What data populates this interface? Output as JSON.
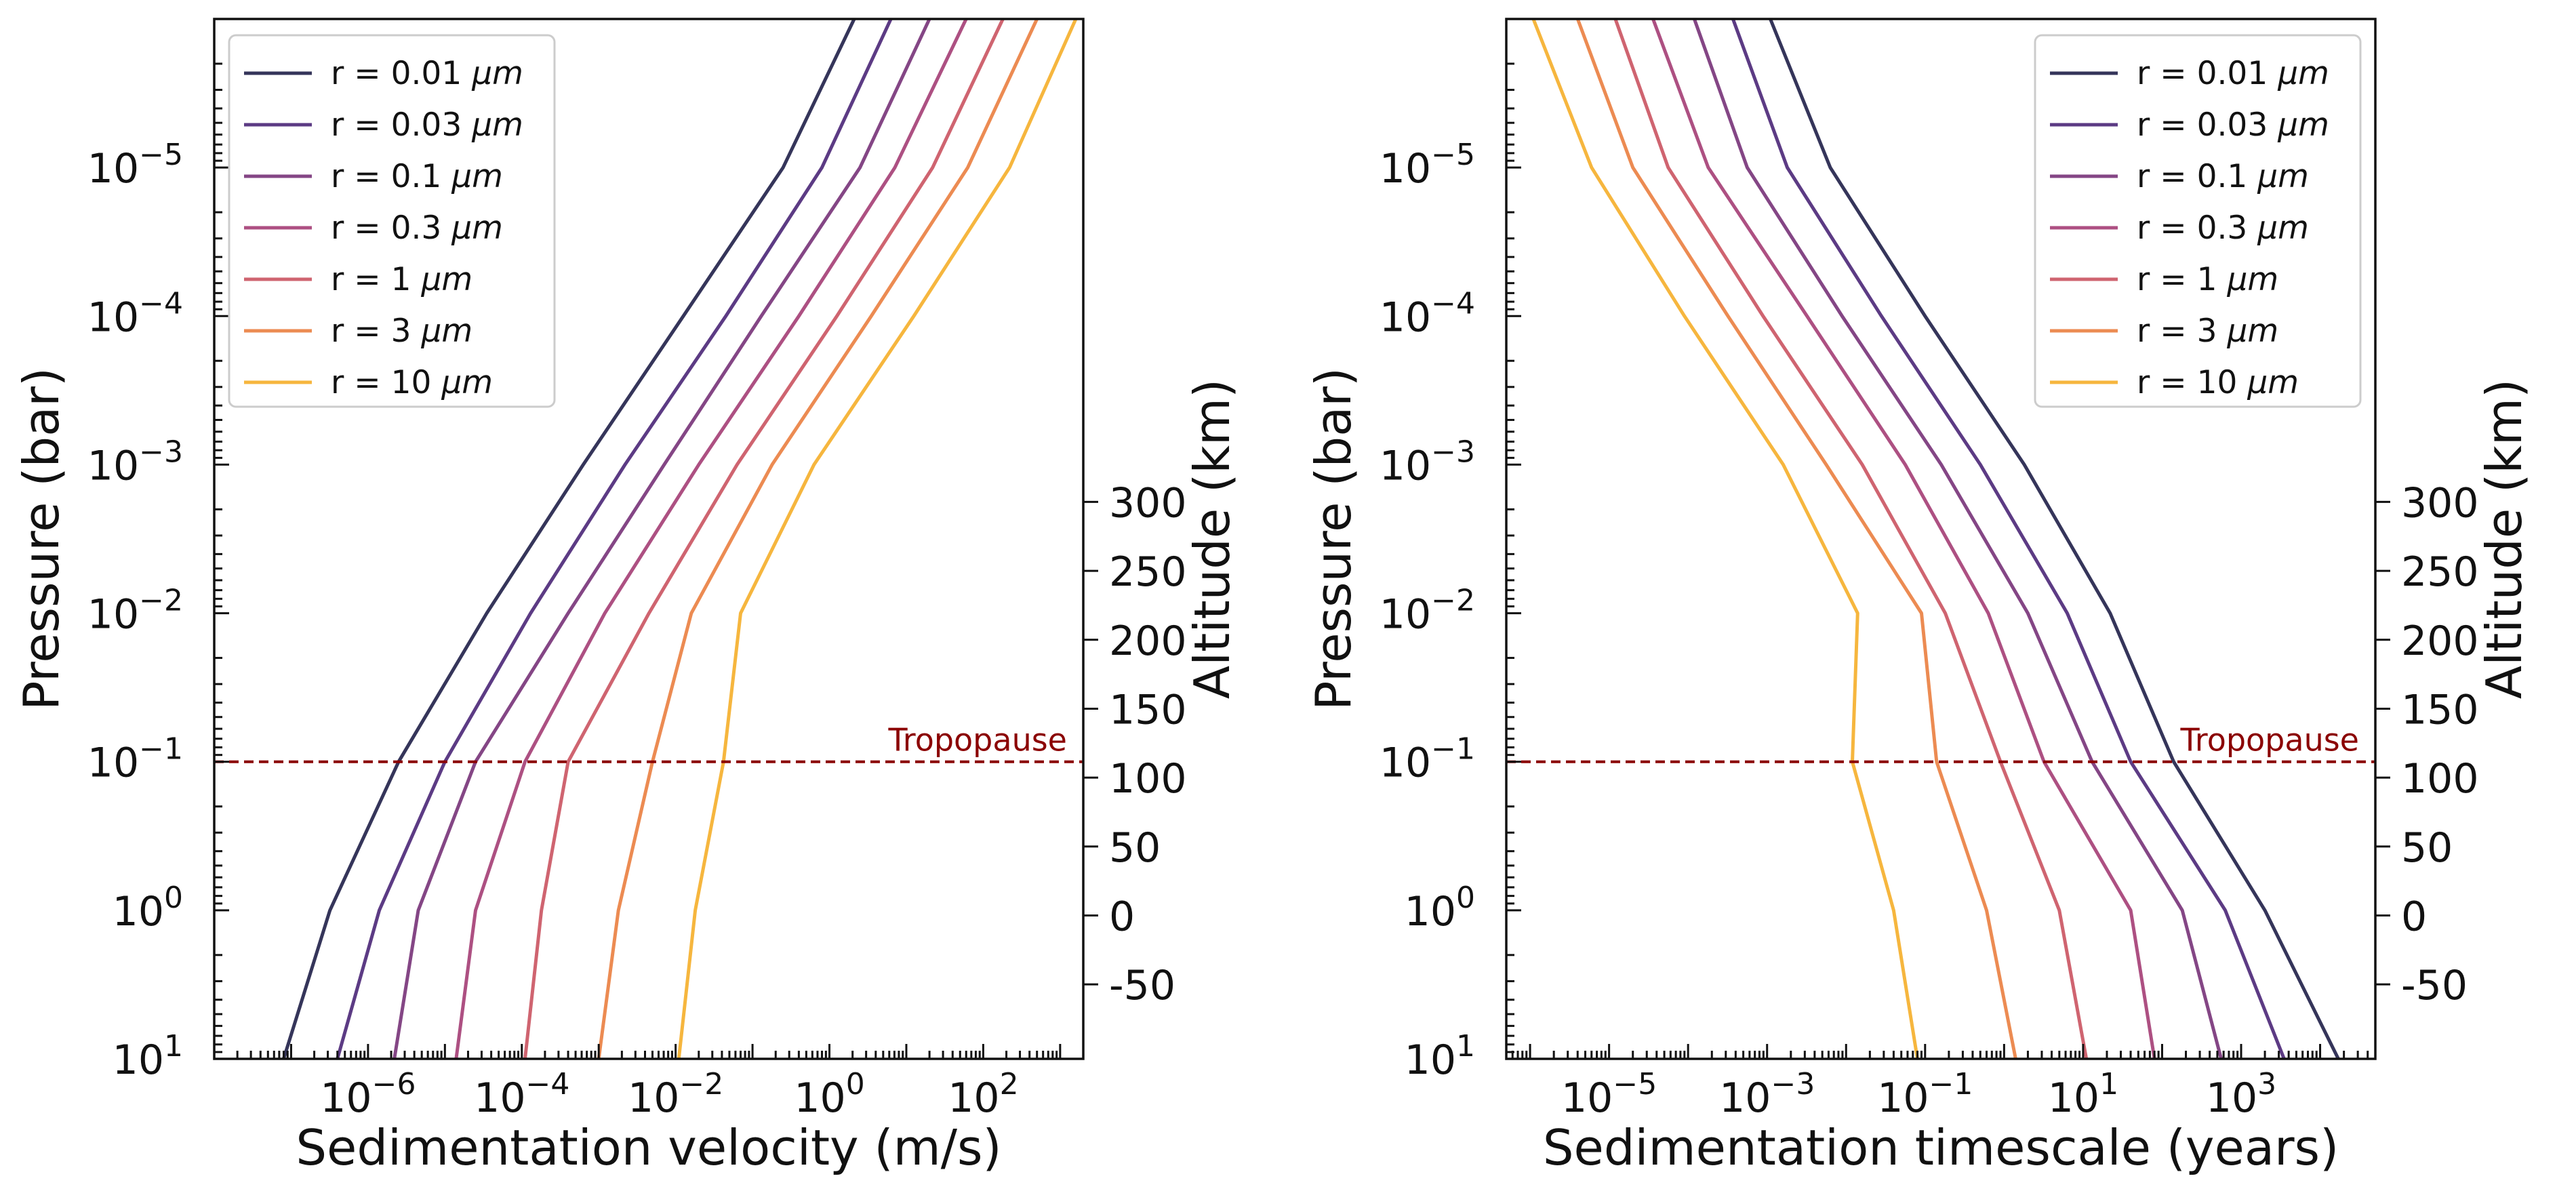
{
  "chart_data": [
    {
      "type": "line",
      "id": "velocity",
      "title": "",
      "xlabel": "Sedimentation velocity (m/s)",
      "ylabel": "Pressure (bar)",
      "y2label": "Altitude (km)",
      "xscale": "log",
      "yscale": "log",
      "xlim": [
        1e-08,
        2000
      ],
      "ylim": [
        10,
        1e-06
      ],
      "xtick_exps": [
        -6,
        -4,
        -2,
        0,
        2
      ],
      "ytick_exps": [
        -5,
        -4,
        -3,
        -2,
        -1,
        0,
        1
      ],
      "y2ticks": [
        300,
        250,
        200,
        150,
        100,
        50,
        0,
        -50
      ],
      "legend_position": "upper left",
      "tropopause": {
        "label": "Tropopause",
        "pressure": 0.1,
        "label_anchor": "right",
        "color": "#8b0000"
      },
      "series": [
        {
          "name": "r = 0.01 μm",
          "label_pre": "r = 0.01 ",
          "label_unit": "μm",
          "color": "#35355a",
          "points": [
            [
              8e-08,
              10
            ],
            [
              3.2e-07,
              1
            ],
            [
              2.5e-06,
              0.1
            ],
            [
              3.5e-05,
              0.01
            ],
            [
              0.00063,
              0.001
            ],
            [
              0.0126,
              0.0001
            ],
            [
              0.25,
              1e-05
            ],
            [
              2.1,
              1e-06
            ]
          ]
        },
        {
          "name": "r = 0.03 μm",
          "label_pre": "r = 0.03 ",
          "label_unit": "μm",
          "color": "#5c3b84",
          "points": [
            [
              4e-07,
              10
            ],
            [
              1.4e-06,
              1
            ],
            [
              1e-05,
              0.1
            ],
            [
              0.00013,
              0.01
            ],
            [
              0.0022,
              0.001
            ],
            [
              0.045,
              0.0001
            ],
            [
              0.8,
              1e-05
            ],
            [
              6.3,
              1e-06
            ]
          ]
        },
        {
          "name": "r = 0.1 μm",
          "label_pre": "r = 0.1 ",
          "label_unit": "μm",
          "color": "#844685",
          "points": [
            [
              2.2e-06,
              10
            ],
            [
              4.5e-06,
              1
            ],
            [
              2.5e-05,
              0.1
            ],
            [
              0.0004,
              0.01
            ],
            [
              0.0071,
              0.001
            ],
            [
              0.13,
              0.0001
            ],
            [
              2.5,
              1e-05
            ],
            [
              20,
              1e-06
            ]
          ]
        },
        {
          "name": "r = 0.3 μm",
          "label_pre": "r = 0.3 ",
          "label_unit": "μm",
          "color": "#ad5082",
          "points": [
            [
              1.4e-05,
              10
            ],
            [
              2.5e-05,
              1
            ],
            [
              0.00011,
              0.1
            ],
            [
              0.0012,
              0.01
            ],
            [
              0.02,
              0.001
            ],
            [
              0.4,
              0.0001
            ],
            [
              7.1,
              1e-05
            ],
            [
              60,
              1e-06
            ]
          ]
        },
        {
          "name": "r = 1 μm",
          "label_pre": "r = 1 ",
          "label_unit": "μm",
          "color": "#cf6470",
          "points": [
            [
              0.00011,
              10
            ],
            [
              0.00018,
              1
            ],
            [
              0.0004,
              0.1
            ],
            [
              0.0045,
              0.01
            ],
            [
              0.063,
              0.001
            ],
            [
              1.25,
              0.0001
            ],
            [
              22,
              1e-05
            ],
            [
              180,
              1e-06
            ]
          ]
        },
        {
          "name": "r = 3 μm",
          "label_pre": "r = 3 ",
          "label_unit": "μm",
          "color": "#ec8b52",
          "points": [
            [
              0.001,
              10
            ],
            [
              0.0018,
              1
            ],
            [
              0.005,
              0.1
            ],
            [
              0.016,
              0.01
            ],
            [
              0.18,
              0.001
            ],
            [
              3.5,
              0.0001
            ],
            [
              63,
              1e-05
            ],
            [
              500,
              1e-06
            ]
          ]
        },
        {
          "name": "r = 10 μm",
          "label_pre": "r = 10 ",
          "label_unit": "μm",
          "color": "#f6b63e",
          "points": [
            [
              0.011,
              10
            ],
            [
              0.018,
              1
            ],
            [
              0.042,
              0.1
            ],
            [
              0.07,
              0.01
            ],
            [
              0.63,
              0.001
            ],
            [
              12.5,
              0.0001
            ],
            [
              220,
              1e-05
            ],
            [
              1600,
              1e-06
            ]
          ]
        }
      ]
    },
    {
      "type": "line",
      "id": "timescale",
      "title": "",
      "xlabel": "Sedimentation timescale (years)",
      "ylabel": "Pressure (bar)",
      "y2label": "Altitude (km)",
      "xscale": "log",
      "yscale": "log",
      "xlim": [
        5e-07,
        50000
      ],
      "ylim": [
        10,
        1e-06
      ],
      "xtick_exps": [
        -5,
        -3,
        -1,
        1,
        3
      ],
      "ytick_exps": [
        -5,
        -4,
        -3,
        -2,
        -1,
        0,
        1
      ],
      "y2ticks": [
        300,
        250,
        200,
        150,
        100,
        50,
        0,
        -50
      ],
      "legend_position": "upper right",
      "tropopause": {
        "label": "Tropopause",
        "pressure": 0.1,
        "label_anchor": "right",
        "color": "#8b0000"
      },
      "series": [
        {
          "name": "r = 0.01 μm",
          "label_pre": "r = 0.01 ",
          "label_unit": "μm",
          "color": "#35355a",
          "points": [
            [
              17000,
              10
            ],
            [
              2000,
              1
            ],
            [
              140,
              0.1
            ],
            [
              22,
              0.01
            ],
            [
              1.8,
              0.001
            ],
            [
              0.1,
              0.0001
            ],
            [
              0.0063,
              1e-05
            ],
            [
              0.0011,
              1e-06
            ]
          ]
        },
        {
          "name": "r = 0.03 μm",
          "label_pre": "r = 0.03 ",
          "label_unit": "μm",
          "color": "#5c3b84",
          "points": [
            [
              3500,
              10
            ],
            [
              630,
              1
            ],
            [
              40,
              0.1
            ],
            [
              6.3,
              0.01
            ],
            [
              0.5,
              0.001
            ],
            [
              0.028,
              0.0001
            ],
            [
              0.0018,
              1e-05
            ],
            [
              0.00037,
              1e-06
            ]
          ]
        },
        {
          "name": "r = 0.1 μm",
          "label_pre": "r = 0.1 ",
          "label_unit": "μm",
          "color": "#844685",
          "points": [
            [
              560,
              10
            ],
            [
              180,
              1
            ],
            [
              13,
              0.1
            ],
            [
              2,
              0.01
            ],
            [
              0.16,
              0.001
            ],
            [
              0.0089,
              0.0001
            ],
            [
              0.00056,
              1e-05
            ],
            [
              0.00012,
              1e-06
            ]
          ]
        },
        {
          "name": "r = 0.3 μm",
          "label_pre": "r = 0.3 ",
          "label_unit": "μm",
          "color": "#ad5082",
          "points": [
            [
              80,
              10
            ],
            [
              40,
              1
            ],
            [
              3.2,
              0.1
            ],
            [
              0.63,
              0.01
            ],
            [
              0.056,
              0.001
            ],
            [
              0.0032,
              0.0001
            ],
            [
              0.00018,
              1e-05
            ],
            [
              3.6e-05,
              1e-06
            ]
          ]
        },
        {
          "name": "r = 1 μm",
          "label_pre": "r = 1 ",
          "label_unit": "μm",
          "color": "#cf6470",
          "points": [
            [
              11,
              10
            ],
            [
              5,
              1
            ],
            [
              0.9,
              0.1
            ],
            [
              0.18,
              0.01
            ],
            [
              0.016,
              0.001
            ],
            [
              0.00089,
              0.0001
            ],
            [
              5.6e-05,
              1e-05
            ],
            [
              1.2e-05,
              1e-06
            ]
          ]
        },
        {
          "name": "r = 3 μm",
          "label_pre": "r = 3 ",
          "label_unit": "μm",
          "color": "#ec8b52",
          "points": [
            [
              1.4,
              10
            ],
            [
              0.6,
              1
            ],
            [
              0.14,
              0.1
            ],
            [
              0.09,
              0.01
            ],
            [
              0.0056,
              0.001
            ],
            [
              0.00032,
              0.0001
            ],
            [
              2e-05,
              1e-05
            ],
            [
              4e-06,
              1e-06
            ]
          ]
        },
        {
          "name": "r = 10 μm",
          "label_pre": "r = 10 ",
          "label_unit": "μm",
          "color": "#f6b63e",
          "points": [
            [
              0.08,
              10
            ],
            [
              0.04,
              1
            ],
            [
              0.012,
              0.1
            ],
            [
              0.014,
              0.01
            ],
            [
              0.0016,
              0.001
            ],
            [
              9e-05,
              0.0001
            ],
            [
              6e-06,
              1e-05
            ],
            [
              1.1e-06,
              1e-06
            ]
          ]
        }
      ]
    }
  ]
}
